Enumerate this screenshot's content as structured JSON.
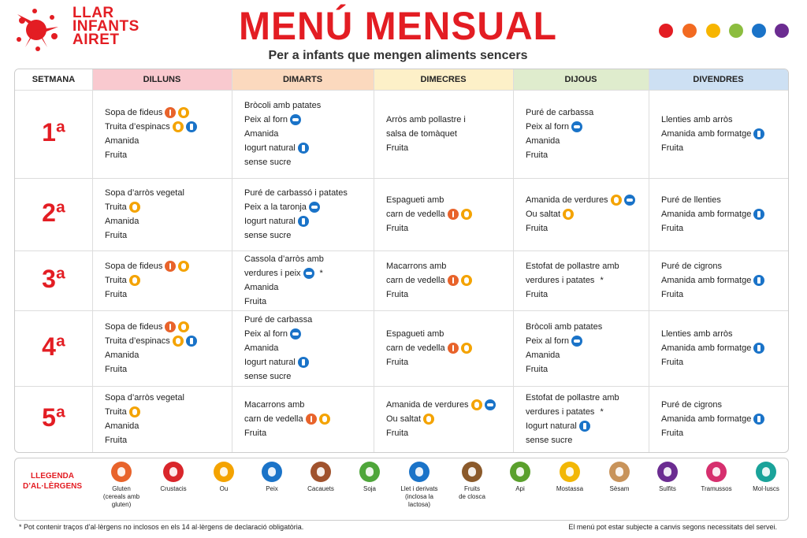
{
  "header": {
    "logo": [
      "LLAR",
      "INFANTS",
      "AIRET"
    ],
    "title": "MENÚ MENSUAL",
    "subtitle": "Per a infants que mengen aliments sencers"
  },
  "table": {
    "columns": [
      "SETMANA",
      "DILLUNS",
      "DIMARTS",
      "DIMECRES",
      "DIJOUS",
      "DIVENDRES"
    ],
    "rows": [
      {
        "week": "1ª",
        "days": [
          [
            "Sopa de fideus",
            "Truita d’espinacs",
            "Amanida",
            "Fruita"
          ],
          [
            "Bròcoli amb patates",
            "Peix al forn",
            "Amanida",
            "Iogurt natural",
            "sense sucre"
          ],
          [
            "Arròs amb pollastre i",
            "salsa de tomàquet",
            "Fruita"
          ],
          [
            "Puré de carbassa",
            "Peix al forn",
            "Amanida",
            "Fruita"
          ],
          [
            "Llenties amb arròs",
            "Amanida amb formatge",
            "Fruita"
          ]
        ]
      },
      {
        "week": "2ª",
        "days": [
          [
            "Sopa d’arròs vegetal",
            "Truita",
            "Amanida",
            "Fruita"
          ],
          [
            "Puré de carbassó i patates",
            "Peix a la taronja",
            "Iogurt natural",
            "sense sucre"
          ],
          [
            "Espagueti amb",
            "carn de vedella",
            "Fruita"
          ],
          [
            "Amanida de verdures",
            "Ou saltat",
            "Fruita"
          ],
          [
            "Puré de llenties",
            "Amanida amb formatge",
            "Fruita"
          ]
        ]
      },
      {
        "week": "3ª",
        "days": [
          [
            "Sopa de fideus",
            "Truita",
            "Fruita"
          ],
          [
            "Cassola d’arròs amb",
            {
              "text": "verdures i peix",
              "note": "*"
            },
            "Amanida",
            "Fruita"
          ],
          [
            "Macarrons amb",
            "carn de vedella",
            "Fruita"
          ],
          [
            "Estofat de pollastre amb",
            {
              "text": "verdures i patates",
              "note": "*"
            },
            "Fruita"
          ],
          [
            "Puré de cigrons",
            "Amanida amb formatge",
            "Fruita"
          ]
        ]
      },
      {
        "week": "4ª",
        "days": [
          [
            "Sopa de fideus",
            "Truita d’espinacs",
            "Amanida",
            "Fruita"
          ],
          [
            "Puré de carbassa",
            "Peix al forn",
            "Amanida",
            "Iogurt natural",
            "sense sucre"
          ],
          [
            "Espagueti amb",
            "carn de vedella",
            "Fruita"
          ],
          [
            "Bròcoli amb patates",
            "Peix al forn",
            "Amanida",
            "Fruita"
          ],
          [
            "Llenties amb arròs",
            "Amanida amb formatge",
            "Fruita"
          ]
        ]
      },
      {
        "week": "5ª",
        "days": [
          [
            "Sopa d’arròs vegetal",
            "Truita",
            "Amanida",
            "Fruita"
          ],
          [
            "Macarrons amb",
            "carn de vedella",
            "Fruita"
          ],
          [
            "Amanida de verdures",
            "Ou saltat",
            "Fruita"
          ],
          [
            "Estofat de pollastre amb",
            {
              "text": "verdures i patates",
              "note": "*"
            },
            "Iogurt natural",
            "sense sucre"
          ],
          [
            "Puré de cigrons",
            "Amanida amb formatge",
            "Fruita"
          ]
        ]
      }
    ]
  },
  "legend": {
    "title": [
      "LLEGENDA",
      "D’AL·LÈRGENS"
    ],
    "items": [
      {
        "lines": [
          "Gluten",
          "(cereals amb",
          "gluten)"
        ]
      },
      {
        "lines": [
          "Crustacis"
        ]
      },
      {
        "lines": [
          "Ou"
        ]
      },
      {
        "lines": [
          "Peix"
        ]
      },
      {
        "lines": [
          "Cacauets"
        ]
      },
      {
        "lines": [
          "Soja"
        ]
      },
      {
        "lines": [
          "Llet i derivats",
          "(inclosa la",
          "lactosa)"
        ]
      },
      {
        "lines": [
          "Fruits",
          "de closca"
        ]
      },
      {
        "lines": [
          "Api"
        ]
      },
      {
        "lines": [
          "Mostassa"
        ]
      },
      {
        "lines": [
          "Sèsam"
        ]
      },
      {
        "lines": [
          "Sulfits"
        ]
      },
      {
        "lines": [
          "Tramussos"
        ]
      },
      {
        "lines": [
          "Mol·luscs"
        ]
      }
    ]
  },
  "footer": {
    "note": "* Pot contenir traços d’al·lèrgens no inclosos en els 14 al·lèrgens de declaració obligatòria.",
    "disclaimer": "El menú pot estar subjecte a canvis segons necessitats del servei."
  }
}
